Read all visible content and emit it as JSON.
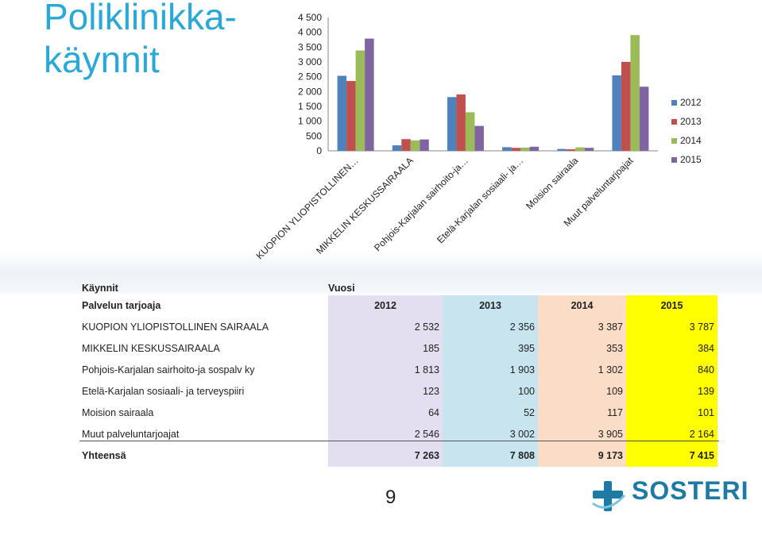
{
  "title_lines": [
    "Poliklinikka-",
    "käynnit"
  ],
  "chart_data": {
    "type": "bar",
    "categories": [
      "KUOPION YLIOPISTOLLINEN…",
      "MIKKELIN KESKUSSAIRAALA",
      "Pohjois-Karjalan sairhoito-ja…",
      "Etelä-Karjalan sosiaali- ja…",
      "Moision sairaala",
      "Muut palveluntarjoajat"
    ],
    "series": [
      {
        "name": "2012",
        "color": "#4f81bd",
        "values": [
          2532,
          185,
          1813,
          123,
          64,
          2546
        ]
      },
      {
        "name": "2013",
        "color": "#c0504d",
        "values": [
          2356,
          395,
          1903,
          100,
          52,
          3002
        ]
      },
      {
        "name": "2014",
        "color": "#9bbb59",
        "values": [
          3387,
          353,
          1302,
          109,
          117,
          3905
        ]
      },
      {
        "name": "2015",
        "color": "#8064a2",
        "values": [
          3787,
          384,
          840,
          139,
          101,
          2164
        ]
      }
    ],
    "yticks": [
      "0",
      "500",
      "1 000",
      "1 500",
      "2 000",
      "2 500",
      "3 000",
      "3 500",
      "4 000",
      "4 500"
    ],
    "ylim": [
      0,
      4500
    ],
    "legend_position": "right",
    "grid": false
  },
  "table": {
    "title": "Käynnit",
    "vuosi_label": "Vuosi",
    "provider_header": "Palvelun tarjoaja",
    "years": [
      "2012",
      "2013",
      "2014",
      "2015"
    ],
    "rows": [
      {
        "label": "KUOPION YLIOPISTOLLINEN SAIRAALA",
        "values": [
          "2 532",
          "2 356",
          "3 387",
          "3 787"
        ]
      },
      {
        "label": "MIKKELIN KESKUSSAIRAALA",
        "values": [
          "185",
          "395",
          "353",
          "384"
        ]
      },
      {
        "label": "Pohjois-Karjalan sairhoito-ja sospalv ky",
        "values": [
          "1 813",
          "1 903",
          "1 302",
          "840"
        ]
      },
      {
        "label": "Etelä-Karjalan sosiaali- ja terveyspiiri",
        "values": [
          "123",
          "100",
          "109",
          "139"
        ]
      },
      {
        "label": "Moision sairaala",
        "values": [
          "64",
          "52",
          "117",
          "101"
        ]
      },
      {
        "label": "Muut palveluntarjoajat",
        "values": [
          "2 546",
          "3 002",
          "3 905",
          "2 164"
        ]
      }
    ],
    "total": {
      "label": "Yhteensä",
      "values": [
        "7 263",
        "7 808",
        "9 173",
        "7 415"
      ]
    }
  },
  "page_number": "9",
  "logo_text": "SOSTERI"
}
